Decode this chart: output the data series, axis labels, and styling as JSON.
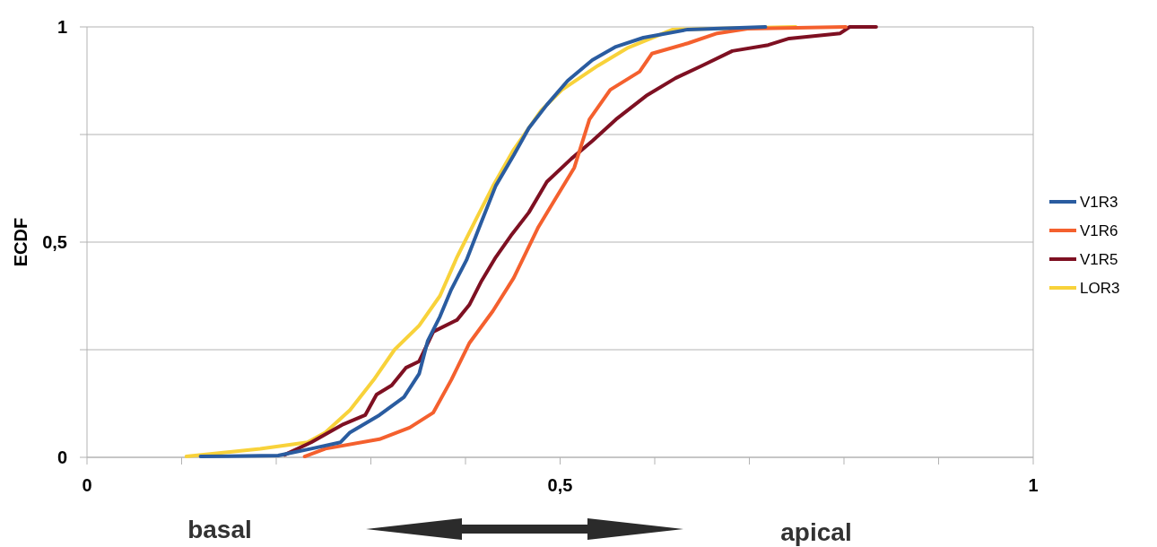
{
  "chart_data": {
    "type": "line",
    "ylabel": "ECDF",
    "annotations": [
      "basal",
      "apical"
    ],
    "xlim": [
      0,
      1
    ],
    "ylim": [
      0,
      1
    ],
    "xticks": [
      0,
      {
        "value": 0.1,
        "label": null
      },
      {
        "value": 0.2,
        "label": null
      },
      {
        "value": 0.3,
        "label": null
      },
      {
        "value": 0.4,
        "label": null
      },
      {
        "value": 0.5,
        "label": "0,5"
      },
      {
        "value": 0.6,
        "label": null
      },
      {
        "value": 0.7,
        "label": null
      },
      {
        "value": 0.8,
        "label": null
      },
      {
        "value": 0.9,
        "label": null
      },
      1
    ],
    "yticks": [
      0,
      {
        "value": 0.25,
        "label": null
      },
      {
        "value": 0.5,
        "label": "0,5"
      },
      {
        "value": 0.75,
        "label": null
      },
      1
    ],
    "grid": "y",
    "legend": "right",
    "marker": "none",
    "line_style": "solid",
    "series": [
      {
        "name": "V1R3",
        "color": "#2a5ca0",
        "x": [
          0.12,
          0.202,
          0.237,
          0.268,
          0.278,
          0.309,
          0.335,
          0.351,
          0.36,
          0.373,
          0.385,
          0.401,
          0.417,
          0.432,
          0.451,
          0.467,
          0.486,
          0.508,
          0.534,
          0.559,
          0.588,
          0.635,
          0.717
        ],
        "values": [
          0.002,
          0.004,
          0.02,
          0.035,
          0.058,
          0.098,
          0.14,
          0.194,
          0.27,
          0.327,
          0.39,
          0.458,
          0.548,
          0.631,
          0.702,
          0.765,
          0.819,
          0.875,
          0.923,
          0.954,
          0.975,
          0.994,
          1.0
        ]
      },
      {
        "name": "V1R6",
        "color": "#f4602e",
        "x": [
          0.23,
          0.252,
          0.309,
          0.341,
          0.366,
          0.385,
          0.404,
          0.429,
          0.451,
          0.477,
          0.496,
          0.515,
          0.531,
          0.553,
          0.584,
          0.597,
          0.635,
          0.666,
          0.698,
          0.802
        ],
        "values": [
          0.002,
          0.02,
          0.042,
          0.069,
          0.104,
          0.18,
          0.265,
          0.34,
          0.417,
          0.535,
          0.604,
          0.673,
          0.785,
          0.854,
          0.896,
          0.938,
          0.962,
          0.985,
          0.996,
          1.0
        ]
      },
      {
        "name": "V1R5",
        "color": "#7e1022",
        "x": [
          0.209,
          0.237,
          0.271,
          0.294,
          0.306,
          0.322,
          0.337,
          0.351,
          0.366,
          0.391,
          0.404,
          0.417,
          0.432,
          0.448,
          0.467,
          0.486,
          0.512,
          0.534,
          0.559,
          0.591,
          0.622,
          0.65,
          0.682,
          0.72,
          0.742,
          0.796,
          0.806,
          0.834
        ],
        "values": [
          0.006,
          0.035,
          0.077,
          0.098,
          0.146,
          0.167,
          0.208,
          0.223,
          0.292,
          0.319,
          0.354,
          0.41,
          0.465,
          0.515,
          0.569,
          0.64,
          0.694,
          0.735,
          0.785,
          0.84,
          0.881,
          0.91,
          0.944,
          0.958,
          0.973,
          0.985,
          1.0,
          1.0
        ]
      },
      {
        "name": "LOR3",
        "color": "#f8d23a",
        "x": [
          0.105,
          0.183,
          0.233,
          0.252,
          0.278,
          0.303,
          0.325,
          0.351,
          0.373,
          0.391,
          0.41,
          0.429,
          0.451,
          0.48,
          0.502,
          0.54,
          0.572,
          0.619,
          0.749
        ],
        "values": [
          0.002,
          0.02,
          0.035,
          0.058,
          0.11,
          0.18,
          0.25,
          0.306,
          0.375,
          0.465,
          0.548,
          0.63,
          0.715,
          0.806,
          0.854,
          0.91,
          0.952,
          0.994,
          1.0
        ]
      }
    ]
  }
}
